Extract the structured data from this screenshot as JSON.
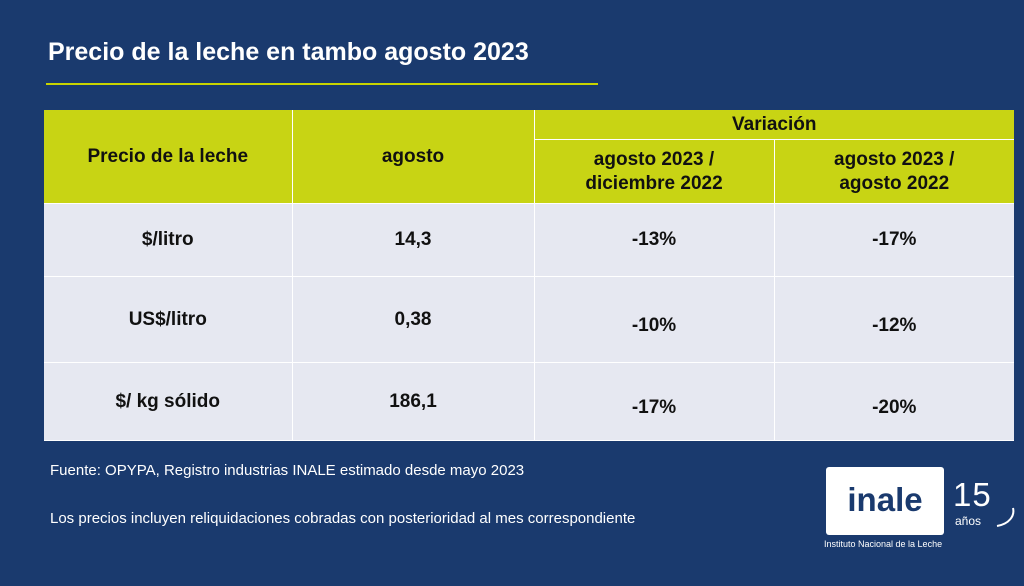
{
  "title": "Precio de la leche en tambo agosto 2023",
  "table": {
    "header": {
      "col1": "Precio de la leche",
      "col2": "agosto",
      "group": "Variación",
      "sub1_line1": "agosto 2023 /",
      "sub1_line2": "diciembre 2022",
      "sub2_line1": "agosto 2023 /",
      "sub2_line2": "agosto 2022"
    },
    "rows": [
      {
        "label": "$/litro",
        "value": "14,3",
        "var_dic": "-13%",
        "var_ago": "-17%"
      },
      {
        "label": "US$/litro",
        "value": "0,38",
        "var_dic": "-10%",
        "var_ago": "-12%"
      },
      {
        "label": "$/ kg sólido",
        "value": "186,1",
        "var_dic": "-17%",
        "var_ago": "-20%"
      }
    ]
  },
  "notes": {
    "source": "Fuente: OPYPA, Registro industrias INALE estimado desde mayo 2023",
    "disclaimer": "Los precios incluyen reliquidaciones cobradas con posterioridad al mes correspondiente"
  },
  "logo": {
    "name": "inale",
    "years": "15",
    "years_word": "años",
    "subtitle": "Instituto Nacional de la Leche"
  },
  "colors": {
    "background": "#1a3a6e",
    "accent": "#c8d414",
    "row_bg": "#e6e8f1"
  }
}
